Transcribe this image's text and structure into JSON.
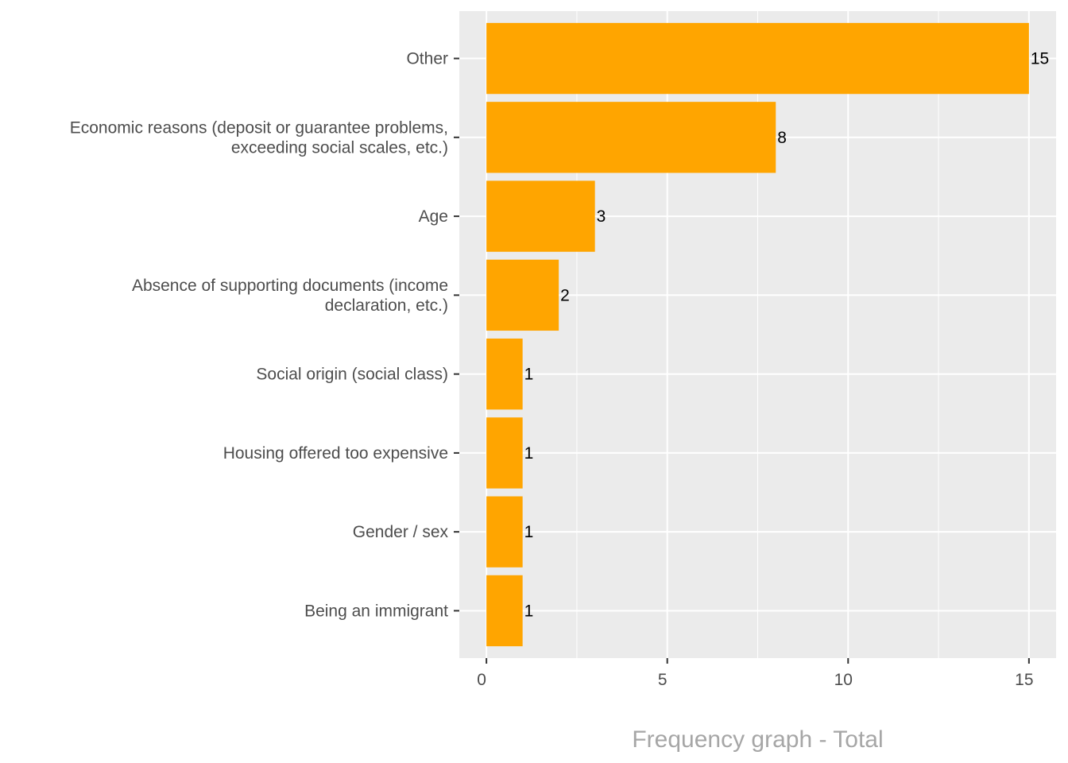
{
  "chart_data": {
    "type": "bar",
    "orientation": "horizontal",
    "title": "Frequency graph - Total",
    "title_position": "bottom",
    "xlabel": "",
    "ylabel": "",
    "categories": [
      [
        "Other"
      ],
      [
        "Economic reasons (deposit or guarantee problems,",
        "exceeding social scales, etc.)"
      ],
      [
        "Age"
      ],
      [
        "Absence of supporting documents (income",
        "declaration, etc.)"
      ],
      [
        "Social origin (social class)"
      ],
      [
        "Housing offered too expensive"
      ],
      [
        "Gender / sex"
      ],
      [
        "Being an immigrant"
      ]
    ],
    "values": [
      15,
      8,
      3,
      2,
      1,
      1,
      1,
      1
    ],
    "data_labels": [
      "15",
      "8",
      "3",
      "2",
      "1",
      "1",
      "1",
      "1"
    ],
    "xlim": [
      -0.75,
      15.75
    ],
    "x_ticks": [
      0,
      5,
      10,
      15
    ],
    "x_tick_labels": [
      "0",
      "5",
      "10",
      "15"
    ],
    "grid": true,
    "legend": "none",
    "colors": {
      "bar": "#FFA500",
      "panel_background": "#EBEBEB",
      "grid": "#FFFFFF",
      "axis_text": "#4D4D4D",
      "title": "#A6A6A6",
      "data_label": "#000000"
    }
  }
}
